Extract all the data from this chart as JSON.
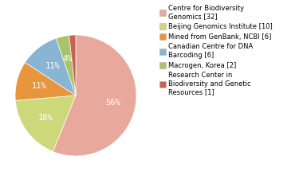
{
  "labels": [
    "Centre for Biodiversity\nGenomics [32]",
    "Beijing Genomics Institute [10]",
    "Mined from GenBank, NCBI [6]",
    "Canadian Centre for DNA\nBarcoding [6]",
    "Macrogen, Korea [2]",
    "Research Center in\nBiodiversity and Genetic\nResources [1]"
  ],
  "values": [
    32,
    10,
    6,
    6,
    2,
    1
  ],
  "colors": [
    "#e8a89c",
    "#cdd87a",
    "#e8963c",
    "#8ab4d4",
    "#a8c46a",
    "#c96050"
  ],
  "legend_labels": [
    "Centre for Biodiversity\nGenomics [32]",
    "Beijing Genomics Institute [10]",
    "Mined from GenBank, NCBI [6]",
    "Canadian Centre for DNA\nBarcoding [6]",
    "Macrogen, Korea [2]",
    "Research Center in\nBiodiversity and Genetic\nResources [1]"
  ],
  "background_color": "#ffffff",
  "startangle": 90,
  "pct_fontsize": 7.5,
  "min_val_for_label": 2
}
